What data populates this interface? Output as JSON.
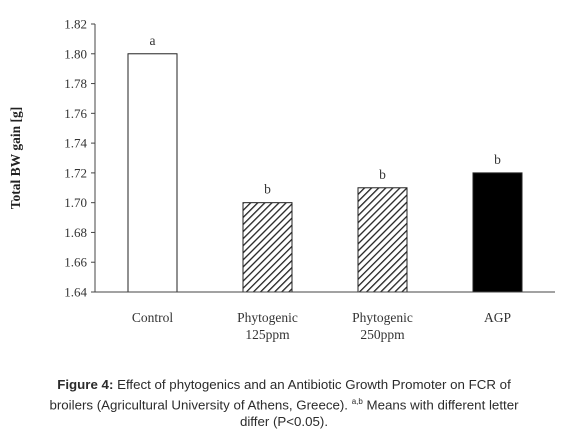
{
  "chart_data": {
    "type": "bar",
    "categories": [
      [
        "Control"
      ],
      [
        "Phytogenic",
        "125ppm"
      ],
      [
        "Phytogenic",
        "250ppm"
      ],
      [
        "AGP"
      ]
    ],
    "values": [
      1.8,
      1.7,
      1.71,
      1.72
    ],
    "significance_letters": [
      "a",
      "b",
      "b",
      "b"
    ],
    "bar_fills": [
      "white",
      "hatched",
      "hatched",
      "black"
    ],
    "xlabel": "",
    "ylabel": "Total BW gain [g]",
    "ylim": [
      1.64,
      1.82
    ],
    "yticks": [
      "1.64",
      "1.66",
      "1.68",
      "1.70",
      "1.72",
      "1.74",
      "1.76",
      "1.78",
      "1.80",
      "1.82"
    ],
    "grid": false
  },
  "caption": {
    "label": "Figure 4:",
    "text_line1": " Effect of phytogenics and an Antibiotic Growth Promoter on FCR of",
    "text_line2a": "broilers (Agricultural University of Athens, Greece). ",
    "superscript": "a,b",
    "text_line2b": " Means with different letter",
    "text_line3": "differ (P<0.05)."
  }
}
